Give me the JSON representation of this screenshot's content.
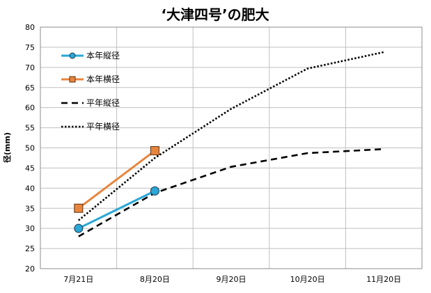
{
  "chart_data": {
    "type": "line",
    "title": "‘大津四号’の肥大",
    "xlabel": "",
    "ylabel": "径(mm)",
    "categories": [
      "7月21日",
      "8月20日",
      "9月20日",
      "10月20日",
      "11月20日"
    ],
    "ylim": [
      20,
      80
    ],
    "yticks": [
      20,
      25,
      30,
      35,
      40,
      45,
      50,
      55,
      60,
      65,
      70,
      75,
      80
    ],
    "grid": true,
    "legend_position": "top-left",
    "series": [
      {
        "name": "本年縦径",
        "values": [
          30.0,
          39.3,
          null,
          null,
          null
        ],
        "color": "#2aa7d6",
        "style": "solid",
        "marker": "circle"
      },
      {
        "name": "本年横径",
        "values": [
          35.0,
          49.3,
          null,
          null,
          null
        ],
        "color": "#e8853d",
        "style": "solid",
        "marker": "square"
      },
      {
        "name": "平年縦径",
        "values": [
          28.0,
          38.8,
          45.3,
          48.7,
          49.7
        ],
        "color": "#000000",
        "style": "dashed",
        "marker": "none"
      },
      {
        "name": "平年横径",
        "values": [
          32.0,
          47.5,
          59.7,
          69.7,
          73.8
        ],
        "color": "#000000",
        "style": "dotted",
        "marker": "none"
      }
    ]
  }
}
